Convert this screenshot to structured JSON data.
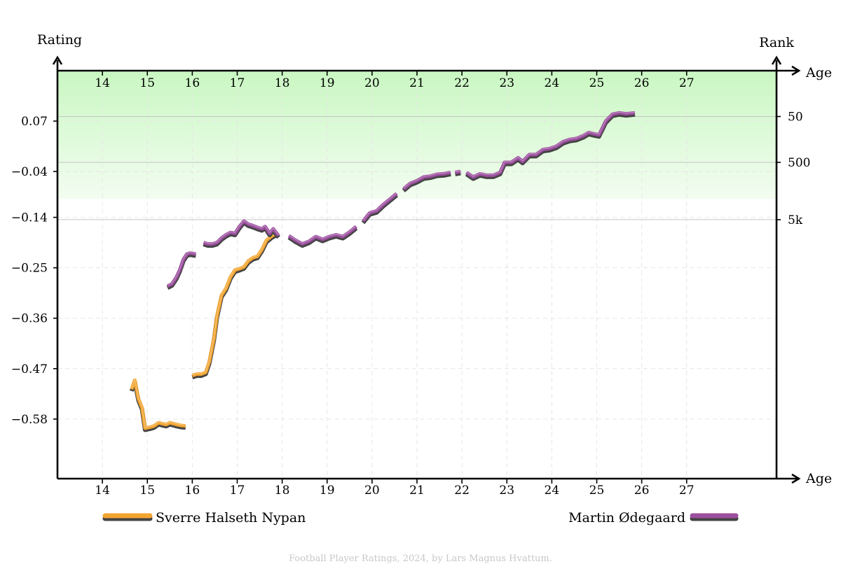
{
  "chart_data": {
    "type": "line",
    "left_axis_title": "Rating",
    "right_axis_title": "Rank",
    "x_axis_title": "Age",
    "xlim": [
      13,
      29
    ],
    "ylim": [
      -0.71,
      0.18
    ],
    "x_ticks": [
      14,
      15,
      16,
      17,
      18,
      19,
      20,
      21,
      22,
      23,
      24,
      25,
      26,
      27
    ],
    "y_ticks": [
      0.07,
      -0.04,
      -0.14,
      -0.25,
      -0.36,
      -0.47,
      -0.58
    ],
    "y_tick_labels": [
      "0.07",
      "−0.04",
      "−0.14",
      "−0.25",
      "−0.36",
      "−0.47",
      "−0.58"
    ],
    "rank_ticks": [
      {
        "label": "50",
        "rating": 0.08
      },
      {
        "label": "500",
        "rating": -0.02
      },
      {
        "label": "5k",
        "rating": -0.145
      }
    ],
    "grid": true,
    "green_band": {
      "from_rating": 0.18,
      "to_rating": -0.1
    },
    "series": [
      {
        "name": "Sverre Halseth Nypan",
        "color": "#f2a531",
        "segments": [
          [
            [
              14.65,
              -0.515
            ],
            [
              14.72,
              -0.495
            ],
            [
              14.8,
              -0.535
            ],
            [
              14.88,
              -0.555
            ],
            [
              14.95,
              -0.6
            ],
            [
              15.05,
              -0.598
            ],
            [
              15.15,
              -0.595
            ],
            [
              15.25,
              -0.588
            ],
            [
              15.33,
              -0.59
            ],
            [
              15.42,
              -0.592
            ],
            [
              15.5,
              -0.588
            ],
            [
              15.58,
              -0.59
            ],
            [
              15.65,
              -0.592
            ],
            [
              15.75,
              -0.594
            ],
            [
              15.85,
              -0.595
            ]
          ],
          [
            [
              16.0,
              -0.485
            ],
            [
              16.1,
              -0.482
            ],
            [
              16.2,
              -0.482
            ],
            [
              16.3,
              -0.478
            ],
            [
              16.38,
              -0.455
            ],
            [
              16.48,
              -0.405
            ],
            [
              16.55,
              -0.355
            ],
            [
              16.65,
              -0.31
            ],
            [
              16.75,
              -0.295
            ],
            [
              16.85,
              -0.27
            ],
            [
              16.95,
              -0.255
            ],
            [
              17.05,
              -0.252
            ],
            [
              17.15,
              -0.248
            ],
            [
              17.25,
              -0.235
            ],
            [
              17.35,
              -0.228
            ],
            [
              17.45,
              -0.225
            ],
            [
              17.55,
              -0.21
            ],
            [
              17.65,
              -0.19
            ],
            [
              17.78,
              -0.18
            ],
            [
              17.9,
              -0.174
            ]
          ]
        ]
      },
      {
        "name": "Martin Ødegaard",
        "color": "#9c4f9e",
        "segments": [
          [
            [
              15.45,
              -0.29
            ],
            [
              15.55,
              -0.285
            ],
            [
              15.65,
              -0.27
            ],
            [
              15.72,
              -0.255
            ],
            [
              15.8,
              -0.232
            ],
            [
              15.88,
              -0.22
            ],
            [
              15.95,
              -0.218
            ],
            [
              16.08,
              -0.22
            ]
          ],
          [
            [
              16.25,
              -0.195
            ],
            [
              16.35,
              -0.198
            ],
            [
              16.45,
              -0.198
            ],
            [
              16.55,
              -0.195
            ],
            [
              16.65,
              -0.185
            ],
            [
              16.75,
              -0.178
            ],
            [
              16.85,
              -0.173
            ],
            [
              16.95,
              -0.175
            ],
            [
              17.05,
              -0.16
            ],
            [
              17.15,
              -0.148
            ],
            [
              17.25,
              -0.155
            ],
            [
              17.35,
              -0.158
            ],
            [
              17.45,
              -0.162
            ],
            [
              17.55,
              -0.165
            ],
            [
              17.62,
              -0.16
            ],
            [
              17.72,
              -0.175
            ],
            [
              17.8,
              -0.165
            ],
            [
              17.92,
              -0.18
            ]
          ],
          [
            [
              18.15,
              -0.18
            ],
            [
              18.3,
              -0.19
            ],
            [
              18.45,
              -0.198
            ],
            [
              18.6,
              -0.192
            ],
            [
              18.75,
              -0.182
            ],
            [
              18.9,
              -0.188
            ],
            [
              19.05,
              -0.182
            ],
            [
              19.2,
              -0.178
            ],
            [
              19.35,
              -0.182
            ],
            [
              19.5,
              -0.172
            ],
            [
              19.65,
              -0.16
            ]
          ],
          [
            [
              19.8,
              -0.148
            ],
            [
              19.95,
              -0.13
            ],
            [
              20.1,
              -0.126
            ],
            [
              20.25,
              -0.112
            ],
            [
              20.4,
              -0.1
            ],
            [
              20.55,
              -0.088
            ]
          ],
          [
            [
              20.7,
              -0.078
            ],
            [
              20.85,
              -0.066
            ],
            [
              21.0,
              -0.06
            ],
            [
              21.15,
              -0.052
            ],
            [
              21.3,
              -0.05
            ],
            [
              21.45,
              -0.046
            ],
            [
              21.6,
              -0.045
            ],
            [
              21.75,
              -0.042
            ]
          ],
          [
            [
              21.85,
              -0.042
            ],
            [
              21.97,
              -0.04
            ]
          ],
          [
            [
              22.1,
              -0.042
            ],
            [
              22.25,
              -0.052
            ],
            [
              22.4,
              -0.045
            ],
            [
              22.55,
              -0.048
            ],
            [
              22.7,
              -0.048
            ],
            [
              22.85,
              -0.042
            ],
            [
              22.95,
              -0.02
            ],
            [
              23.1,
              -0.02
            ],
            [
              23.25,
              -0.01
            ],
            [
              23.35,
              -0.018
            ],
            [
              23.5,
              -0.003
            ],
            [
              23.65,
              -0.003
            ],
            [
              23.8,
              0.008
            ],
            [
              23.95,
              0.01
            ],
            [
              24.1,
              0.015
            ],
            [
              24.25,
              0.025
            ],
            [
              24.4,
              0.03
            ],
            [
              24.55,
              0.032
            ],
            [
              24.7,
              0.038
            ],
            [
              24.82,
              0.045
            ],
            [
              24.95,
              0.042
            ],
            [
              25.05,
              0.04
            ],
            [
              25.2,
              0.07
            ],
            [
              25.35,
              0.085
            ],
            [
              25.5,
              0.088
            ],
            [
              25.65,
              0.086
            ],
            [
              25.85,
              0.088
            ]
          ]
        ]
      }
    ]
  },
  "legend": {
    "series_1": "Sverre Halseth Nypan",
    "series_2": "Martin Ødegaard"
  },
  "credit": "Football Player Ratings, 2024, by Lars Magnus Hvattum."
}
